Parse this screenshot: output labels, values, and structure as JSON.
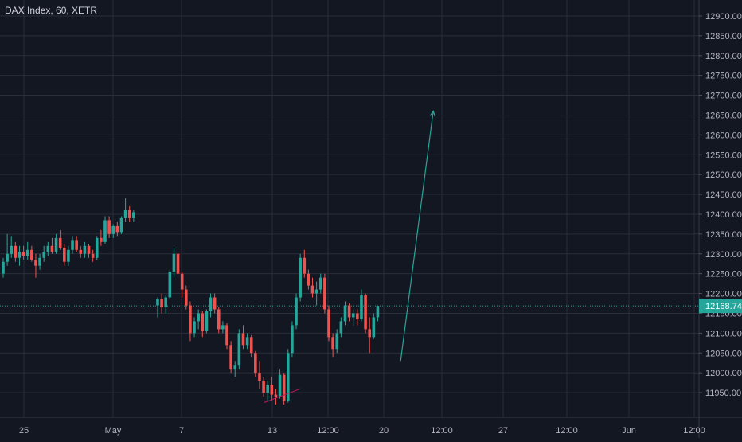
{
  "header": {
    "symbol_title": "DAX Index, 60, XETR"
  },
  "colors": {
    "background": "#131722",
    "grid": "#2a2e39",
    "up": "#26a69a",
    "down": "#ef5350",
    "axis_text": "#b2b5be",
    "price_label_bg": "#26a69a",
    "arrow": "#26a69a"
  },
  "chart_data": {
    "type": "candlestick",
    "title": "DAX Index, 60, XETR",
    "ylim": [
      11920,
      12920
    ],
    "y_ticks": [
      11950,
      12000,
      12050,
      12100,
      12150,
      12200,
      12250,
      12300,
      12350,
      12400,
      12450,
      12500,
      12550,
      12600,
      12650,
      12700,
      12750,
      12800,
      12850,
      12900
    ],
    "y_tick_labels": [
      "11950.00",
      "12000.00",
      "12050.00",
      "12100.00",
      "12150.00",
      "12200.00",
      "12250.00",
      "12300.00",
      "12350.00",
      "12400.00",
      "12450.00",
      "12500.00",
      "12550.00",
      "12600.00",
      "12650.00",
      "12700.00",
      "12750.00",
      "12800.00",
      "12850.00",
      "12900.00"
    ],
    "x_tick_labels": [
      "25",
      "May",
      "7",
      "13",
      "12:00",
      "20",
      "12:00",
      "27",
      "12:00",
      "Jun",
      "12:00"
    ],
    "grid": true,
    "current_price": 12168.74,
    "current_price_label": "12168.74",
    "candles": [
      [
        12250,
        12290,
        12240,
        12280
      ],
      [
        12280,
        12350,
        12270,
        12300
      ],
      [
        12300,
        12345,
        12290,
        12320
      ],
      [
        12320,
        12330,
        12280,
        12290
      ],
      [
        12290,
        12320,
        12270,
        12305
      ],
      [
        12305,
        12320,
        12285,
        12295
      ],
      [
        12295,
        12330,
        12285,
        12310
      ],
      [
        12310,
        12320,
        12280,
        12285
      ],
      [
        12285,
        12300,
        12240,
        12270
      ],
      [
        12270,
        12300,
        12260,
        12290
      ],
      [
        12290,
        12320,
        12280,
        12305
      ],
      [
        12305,
        12330,
        12295,
        12320
      ],
      [
        12320,
        12340,
        12300,
        12305
      ],
      [
        12305,
        12350,
        12300,
        12340
      ],
      [
        12340,
        12360,
        12310,
        12315
      ],
      [
        12315,
        12325,
        12270,
        12280
      ],
      [
        12280,
        12320,
        12270,
        12310
      ],
      [
        12310,
        12345,
        12300,
        12335
      ],
      [
        12335,
        12345,
        12305,
        12310
      ],
      [
        12310,
        12320,
        12290,
        12300
      ],
      [
        12300,
        12330,
        12290,
        12320
      ],
      [
        12320,
        12325,
        12290,
        12300
      ],
      [
        12300,
        12310,
        12280,
        12290
      ],
      [
        12290,
        12345,
        12285,
        12340
      ],
      [
        12340,
        12360,
        12320,
        12330
      ],
      [
        12330,
        12395,
        12325,
        12385
      ],
      [
        12385,
        12395,
        12340,
        12350
      ],
      [
        12350,
        12375,
        12340,
        12370
      ],
      [
        12370,
        12380,
        12345,
        12355
      ],
      [
        12355,
        12395,
        12350,
        12390
      ],
      [
        12390,
        12440,
        12380,
        12410
      ],
      [
        12410,
        12420,
        12380,
        12390
      ],
      [
        12390,
        12410,
        12380,
        12405
      ],
      [
        12170,
        12190,
        12140,
        12185
      ],
      [
        12185,
        12200,
        12150,
        12165
      ],
      [
        12165,
        12195,
        12150,
        12190
      ],
      [
        12190,
        12260,
        12185,
        12255
      ],
      [
        12255,
        12315,
        12240,
        12300
      ],
      [
        12300,
        12305,
        12240,
        12250
      ],
      [
        12250,
        12255,
        12190,
        12210
      ],
      [
        12210,
        12220,
        12160,
        12170
      ],
      [
        12170,
        12180,
        12080,
        12100
      ],
      [
        12100,
        12140,
        12090,
        12130
      ],
      [
        12130,
        12160,
        12110,
        12150
      ],
      [
        12150,
        12155,
        12090,
        12105
      ],
      [
        12105,
        12160,
        12100,
        12155
      ],
      [
        12155,
        12200,
        12140,
        12190
      ],
      [
        12190,
        12200,
        12150,
        12160
      ],
      [
        12160,
        12165,
        12100,
        12110
      ],
      [
        12110,
        12130,
        12100,
        12120
      ],
      [
        12120,
        12125,
        12060,
        12070
      ],
      [
        12070,
        12080,
        12000,
        12010
      ],
      [
        12010,
        12030,
        11990,
        12020
      ],
      [
        12020,
        12110,
        12010,
        12100
      ],
      [
        12100,
        12120,
        12060,
        12070
      ],
      [
        12070,
        12100,
        12060,
        12090
      ],
      [
        12090,
        12095,
        12040,
        12050
      ],
      [
        12050,
        12055,
        11990,
        12000
      ],
      [
        12000,
        12030,
        11960,
        11980
      ],
      [
        11980,
        11990,
        11940,
        11950
      ],
      [
        11950,
        11980,
        11930,
        11970
      ],
      [
        11970,
        11990,
        11930,
        11945
      ],
      [
        11945,
        11960,
        11920,
        11940
      ],
      [
        11940,
        12010,
        11935,
        11995
      ],
      [
        11995,
        12000,
        11920,
        11930
      ],
      [
        11930,
        12060,
        11925,
        12050
      ],
      [
        12050,
        12130,
        12040,
        12120
      ],
      [
        12120,
        12200,
        12110,
        12190
      ],
      [
        12190,
        12300,
        12180,
        12290
      ],
      [
        12290,
        12310,
        12240,
        12250
      ],
      [
        12250,
        12260,
        12210,
        12220
      ],
      [
        12220,
        12240,
        12190,
        12200
      ],
      [
        12200,
        12230,
        12170,
        12210
      ],
      [
        12210,
        12250,
        12200,
        12240
      ],
      [
        12240,
        12250,
        12150,
        12160
      ],
      [
        12160,
        12170,
        12080,
        12090
      ],
      [
        12090,
        12100,
        12040,
        12060
      ],
      [
        12060,
        12110,
        12050,
        12100
      ],
      [
        12100,
        12140,
        12090,
        12130
      ],
      [
        12130,
        12180,
        12120,
        12170
      ],
      [
        12170,
        12175,
        12130,
        12140
      ],
      [
        12140,
        12160,
        12120,
        12150
      ],
      [
        12150,
        12160,
        12120,
        12135
      ],
      [
        12135,
        12210,
        12130,
        12195
      ],
      [
        12195,
        12200,
        12100,
        12110
      ],
      [
        12110,
        12140,
        12050,
        12090
      ],
      [
        12090,
        12150,
        12085,
        12140
      ],
      [
        12140,
        12170,
        12130,
        12168.74
      ]
    ],
    "annotations": [
      {
        "type": "arrow",
        "from": [
          97.5,
          12030
        ],
        "to": [
          105.5,
          12660
        ]
      },
      {
        "type": "trendline",
        "from": [
          64,
          11925
        ],
        "to": [
          73,
          11960
        ]
      }
    ]
  }
}
